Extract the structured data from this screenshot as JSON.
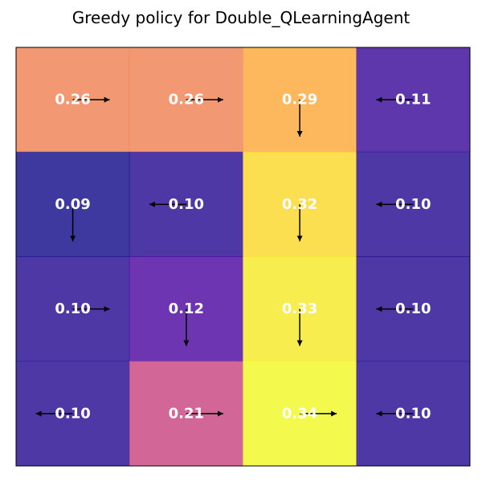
{
  "chart_data": {
    "type": "heatmap",
    "title": "Greedy policy for Double_QLearningAgent",
    "rows": 4,
    "cols": 4,
    "values": [
      [
        0.26,
        0.26,
        0.29,
        0.11
      ],
      [
        0.09,
        0.1,
        0.32,
        0.1
      ],
      [
        0.1,
        0.12,
        0.33,
        0.1
      ],
      [
        0.1,
        0.21,
        0.34,
        0.1
      ]
    ],
    "actions": [
      [
        "right",
        "right",
        "down",
        "left"
      ],
      [
        "down",
        "left",
        "down",
        "left"
      ],
      [
        "right",
        "down",
        "down",
        "left"
      ],
      [
        "left",
        "right",
        "right",
        "left"
      ]
    ],
    "colormap": "plasma",
    "value_text_color": "#ffffff",
    "arrow_color": "#000000",
    "grid": false
  }
}
